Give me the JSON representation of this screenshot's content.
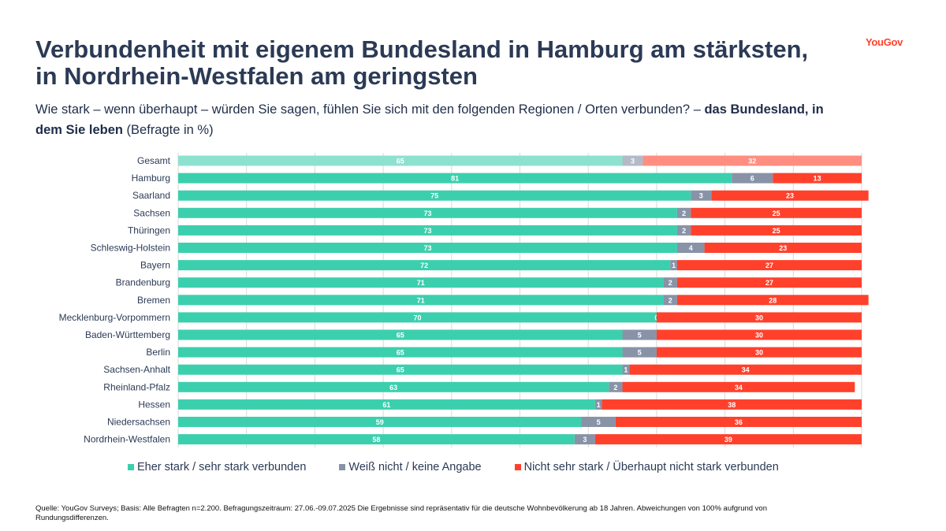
{
  "header": {
    "title": "Verbundenheit mit eigenem Bundesland in Hamburg am stärksten, in Nordrhein-Westfalen am geringsten",
    "subtitle_plain": "Wie stark – wenn überhaupt – würden Sie sagen, fühlen Sie sich mit den folgenden Regionen / Orten verbunden? – ",
    "subtitle_bold": "das Bundesland, in dem Sie leben",
    "subtitle_suffix": " (Befragte in %)",
    "logo": "YouGov"
  },
  "colors": {
    "strong": "#3ccfae",
    "strong_total": "#8de2cf",
    "unknown": "#8893a8",
    "unknown_total": "#b3bac8",
    "weak": "#ff412c",
    "weak_total": "#ff8e80",
    "grid": "#d9d9d9"
  },
  "chart_data": {
    "type": "bar",
    "orientation": "horizontal",
    "stacked": true,
    "categories": [
      "Gesamt",
      "Hamburg",
      "Saarland",
      "Sachsen",
      "Thüringen",
      "Schleswig-Holstein",
      "Bayern",
      "Brandenburg",
      "Bremen",
      "Mecklenburg-Vorpommern",
      "Baden-Württemberg",
      "Berlin",
      "Sachsen-Anhalt",
      "Rheinland-Pfalz",
      "Hessen",
      "Niedersachsen",
      "Nordrhein-Westfalen"
    ],
    "series": [
      {
        "name": "Eher stark / sehr stark verbunden",
        "values": [
          65,
          81,
          75,
          73,
          73,
          73,
          72,
          71,
          71,
          70,
          65,
          65,
          65,
          63,
          61,
          59,
          58
        ]
      },
      {
        "name": "Weiß nicht / keine Angabe",
        "values": [
          3,
          6,
          3,
          2,
          2,
          4,
          1,
          2,
          2,
          0,
          5,
          5,
          1,
          2,
          1,
          5,
          3
        ]
      },
      {
        "name": "Nicht sehr stark / Überhaupt nicht stark verbunden",
        "values": [
          32,
          13,
          23,
          25,
          25,
          23,
          27,
          27,
          28,
          30,
          30,
          30,
          34,
          34,
          38,
          36,
          39
        ]
      }
    ],
    "xlim": [
      0,
      100
    ],
    "grid": true,
    "legend_position": "bottom"
  },
  "footer": {
    "source": "Quelle: YouGov Surveys; Basis: Alle Befragten n=2.200. Befragungszeitraum: 27.06.-09.07.2025 Die Ergebnisse sind repräsentativ für die deutsche Wohnbevölkerung ab 18 Jahren. Abweichungen von 100% aufgrund von Rundungsdifferenzen."
  }
}
